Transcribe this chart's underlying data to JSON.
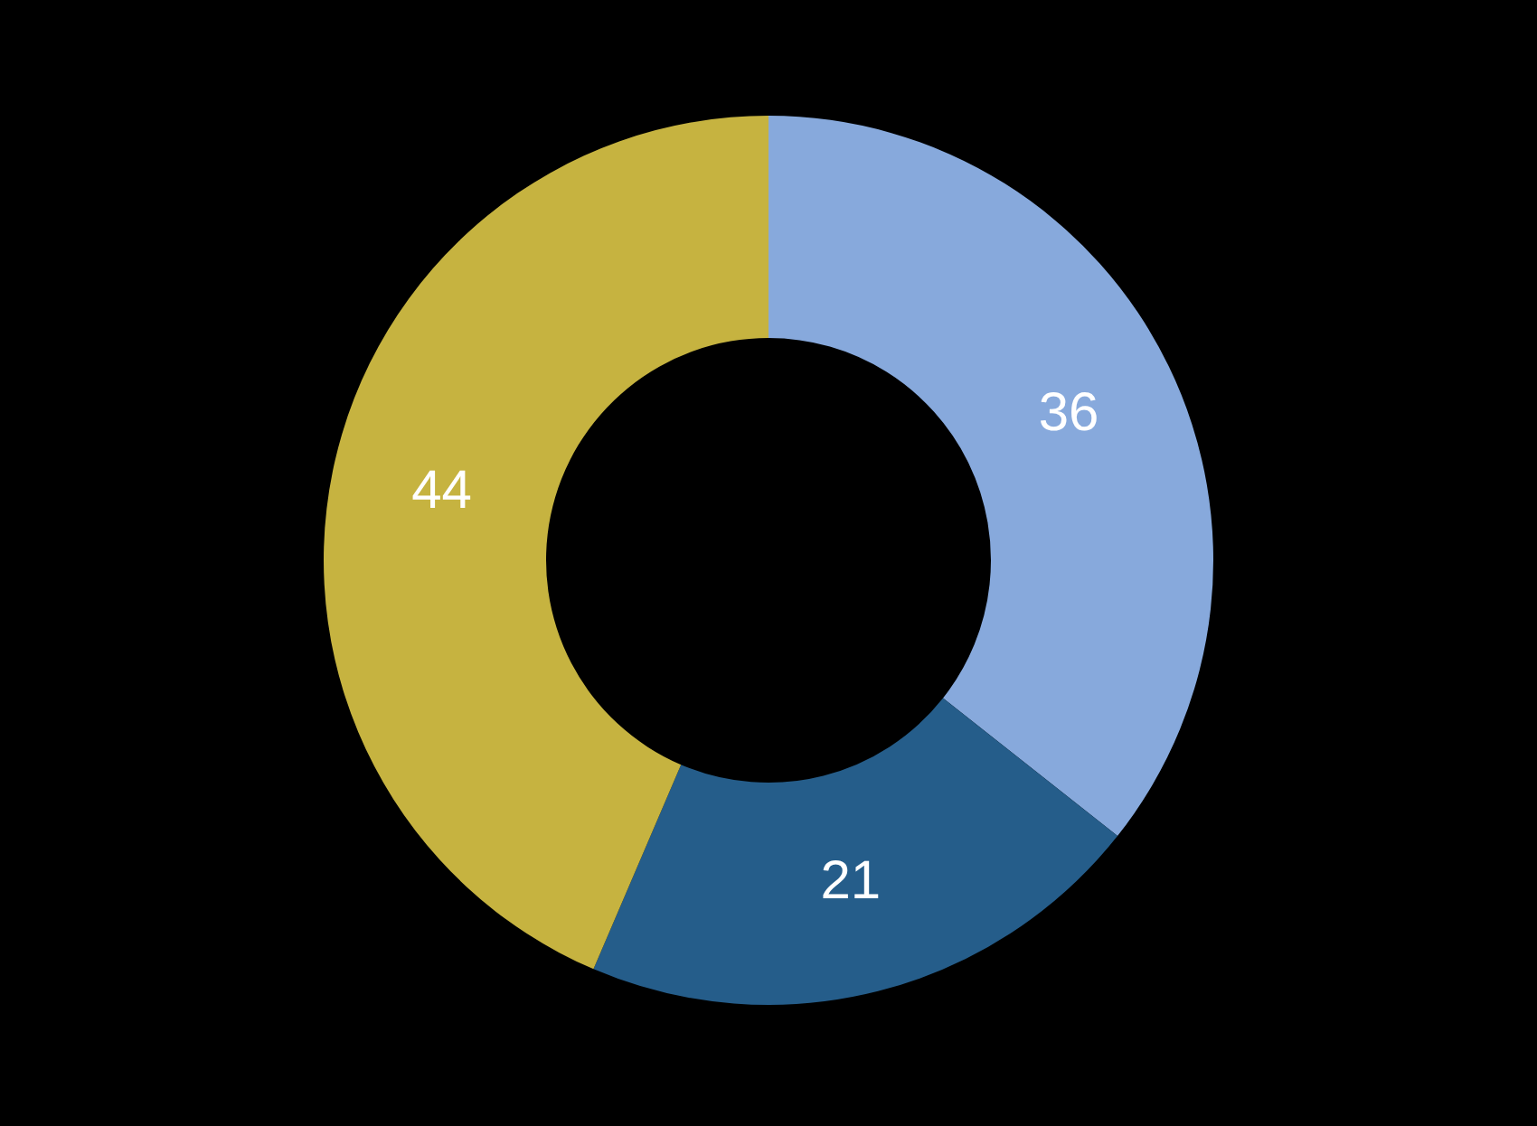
{
  "chart_data": {
    "type": "donut",
    "categories": [
      null,
      null,
      null
    ],
    "values": [
      36,
      21,
      44
    ],
    "colors": [
      "#87a9dc",
      "#255d8a",
      "#c6b340"
    ],
    "data_labels": true
  }
}
